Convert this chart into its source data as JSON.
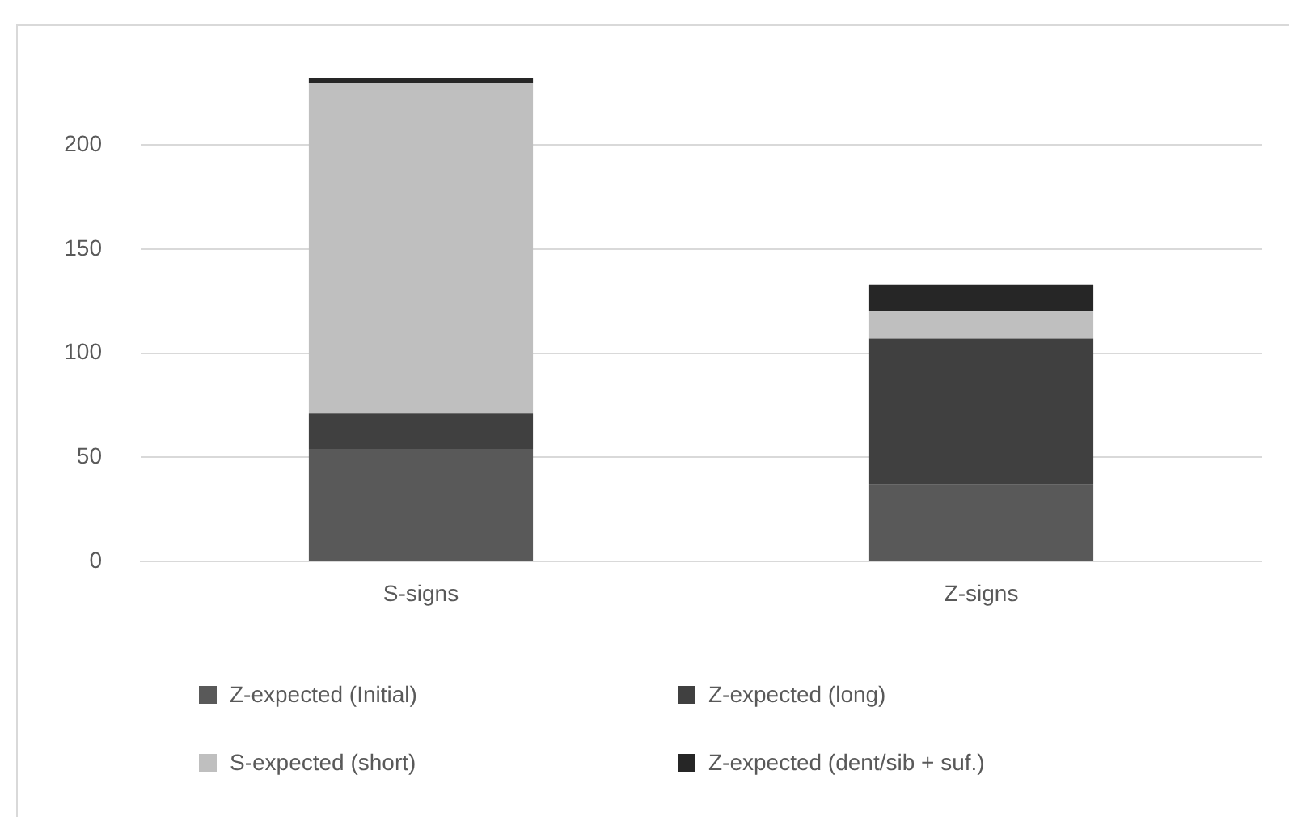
{
  "chart_data": {
    "type": "bar",
    "stacked": true,
    "categories": [
      "S-signs",
      "Z-signs"
    ],
    "series": [
      {
        "name": "Z-expected (Initial)",
        "color": "#595959",
        "values": [
          54,
          37
        ]
      },
      {
        "name": "Z-expected (long)",
        "color": "#404040",
        "values": [
          17,
          70
        ]
      },
      {
        "name": "S-expected (short)",
        "color": "#bfbfbf",
        "values": [
          159,
          13
        ]
      },
      {
        "name": "Z-expected (dent/sib + suf.)",
        "color": "#262626",
        "values": [
          2,
          13
        ]
      }
    ],
    "ylim": [
      0,
      258
    ],
    "yticks": [
      0,
      50,
      100,
      150,
      200
    ],
    "grid": "y",
    "legend": "bottom"
  }
}
